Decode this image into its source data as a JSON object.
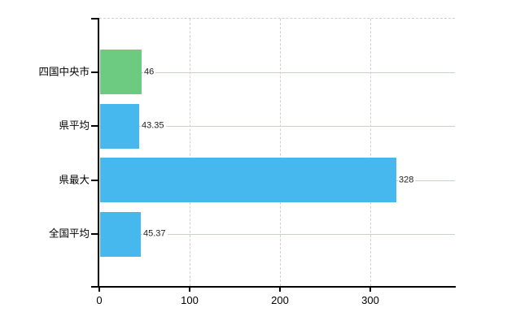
{
  "chart_data": {
    "type": "bar",
    "orientation": "horizontal",
    "title": "",
    "categories": [
      "四国中央市",
      "県平均",
      "県最大",
      "全国平均"
    ],
    "values": [
      46,
      43.35,
      328,
      45.37
    ],
    "value_labels": [
      "46",
      "43.35",
      "328",
      "45.37"
    ],
    "bar_colors": [
      "#6cca81",
      "#47b8ed",
      "#47b8ed",
      "#47b8ed"
    ],
    "x_axis": {
      "ticks": [
        0,
        100,
        200,
        300
      ],
      "tick_labels": [
        "0",
        "100",
        "200",
        "300"
      ],
      "range": [
        0,
        394
      ]
    },
    "ylabel": "",
    "xlabel": "",
    "grid": true,
    "legend": "none",
    "colors": {
      "highlight_bar": "#6cca81",
      "default_bar": "#47b8ed",
      "horizontal_grid": "#c8d2c8",
      "vertical_grid": "#d5ced1",
      "axis": "#000000",
      "value_text": "#1f1f1f",
      "category_text": "#000000",
      "background": "#ffffff"
    }
  }
}
